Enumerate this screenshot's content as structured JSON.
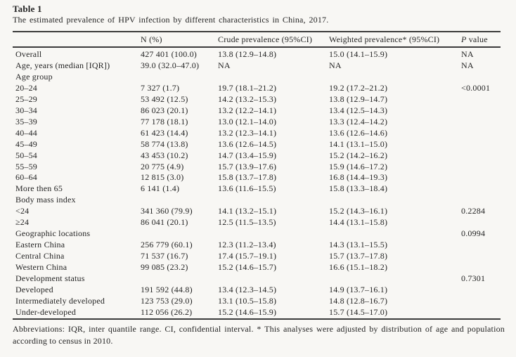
{
  "title": "Table 1",
  "caption": "The estimated prevalence of HPV infection by different characteristics in China, 2017.",
  "table": {
    "columns": [
      "",
      "N (%)",
      "Crude prevalence (95%CI)",
      "Weighted prevalence* (95%CI)",
      "P value"
    ],
    "rows": [
      {
        "label": "Overall",
        "n": "427 401 (100.0)",
        "crude": "13.8 (12.9–14.8)",
        "weighted": "15.0 (14.1–15.9)",
        "p": "NA"
      },
      {
        "label": "Age, years (median [IQR])",
        "n": "39.0 (32.0–47.0)",
        "crude": "NA",
        "weighted": "NA",
        "p": "NA"
      },
      {
        "label": "Age group",
        "n": "",
        "crude": "",
        "weighted": "",
        "p": ""
      },
      {
        "label": "20–24",
        "n": "7 327 (1.7)",
        "crude": "19.7 (18.1–21.2)",
        "weighted": "19.2 (17.2–21.2)",
        "p": "<0.0001"
      },
      {
        "label": "25–29",
        "n": "53 492 (12.5)",
        "crude": "14.2 (13.2–15.3)",
        "weighted": "13.8 (12.9–14.7)",
        "p": ""
      },
      {
        "label": "30–34",
        "n": "86 023 (20.1)",
        "crude": "13.2 (12.2–14.1)",
        "weighted": "13.4 (12.5–14.3)",
        "p": ""
      },
      {
        "label": "35–39",
        "n": "77 178 (18.1)",
        "crude": "13.0 (12.1–14.0)",
        "weighted": "13.3 (12.4–14.2)",
        "p": ""
      },
      {
        "label": "40–44",
        "n": "61 423 (14.4)",
        "crude": "13.2 (12.3–14.1)",
        "weighted": "13.6 (12.6–14.6)",
        "p": ""
      },
      {
        "label": "45–49",
        "n": "58 774 (13.8)",
        "crude": "13.6 (12.6–14.5)",
        "weighted": "14.1 (13.1–15.0)",
        "p": ""
      },
      {
        "label": "50–54",
        "n": "43 453 (10.2)",
        "crude": "14.7 (13.4–15.9)",
        "weighted": "15.2 (14.2–16.2)",
        "p": ""
      },
      {
        "label": "55–59",
        "n": "20 775 (4.9)",
        "crude": "15.7 (13.9–17.6)",
        "weighted": "15.9 (14.6–17.2)",
        "p": ""
      },
      {
        "label": "60–64",
        "n": "12 815 (3.0)",
        "crude": "15.8 (13.7–17.8)",
        "weighted": "16.8 (14.4–19.3)",
        "p": ""
      },
      {
        "label": "More then 65",
        "n": "6 141 (1.4)",
        "crude": "13.6 (11.6–15.5)",
        "weighted": "15.8 (13.3–18.4)",
        "p": ""
      },
      {
        "label": "Body mass index",
        "n": "",
        "crude": "",
        "weighted": "",
        "p": ""
      },
      {
        "label": "<24",
        "n": "341 360 (79.9)",
        "crude": "14.1 (13.2–15.1)",
        "weighted": "15.2 (14.3–16.1)",
        "p": "0.2284"
      },
      {
        "label": "≥24",
        "n": "86 041 (20.1)",
        "crude": "12.5 (11.5–13.5)",
        "weighted": "14.4 (13.1–15.8)",
        "p": ""
      },
      {
        "label": "Geographic locations",
        "n": "",
        "crude": "",
        "weighted": "",
        "p": "0.0994"
      },
      {
        "label": "Eastern China",
        "n": "256 779 (60.1)",
        "crude": "12.3 (11.2–13.4)",
        "weighted": "14.3 (13.1–15.5)",
        "p": ""
      },
      {
        "label": "Central China",
        "n": "71 537 (16.7)",
        "crude": "17.4 (15.7–19.1)",
        "weighted": "15.7 (13.7–17.8)",
        "p": ""
      },
      {
        "label": "Western China",
        "n": "99 085 (23.2)",
        "crude": "15.2 (14.6–15.7)",
        "weighted": "16.6 (15.1–18.2)",
        "p": ""
      },
      {
        "label": "Development status",
        "n": "",
        "crude": "",
        "weighted": "",
        "p": "0.7301"
      },
      {
        "label": "Developed",
        "n": "191 592 (44.8)",
        "crude": "13.4 (12.3–14.5)",
        "weighted": "14.9 (13.7–16.1)",
        "p": ""
      },
      {
        "label": "Intermediately developed",
        "n": "123 753 (29.0)",
        "crude": "13.1 (10.5–15.8)",
        "weighted": "14.8 (12.8–16.7)",
        "p": ""
      },
      {
        "label": "Under-developed",
        "n": "112 056 (26.2)",
        "crude": "15.2 (14.6–15.9)",
        "weighted": "15.7 (14.5–17.0)",
        "p": ""
      }
    ]
  },
  "footnote": "Abbreviations: IQR, inter quantile range. CI, confidential interval. * This analyses were adjusted by distribution of age and population according to census in 2010."
}
